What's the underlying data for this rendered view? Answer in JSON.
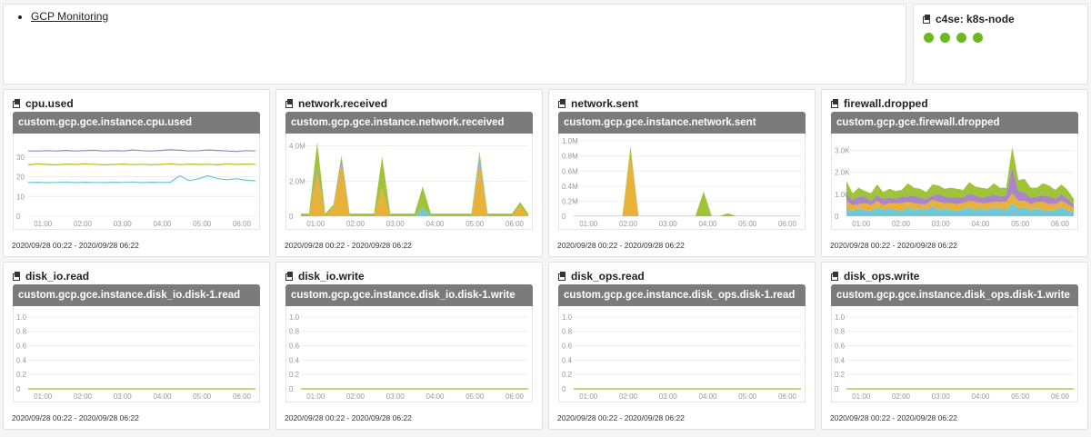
{
  "header": {
    "link_label": "GCP Monitoring"
  },
  "host": {
    "title": "c4se: k8s-node",
    "dots": 4,
    "dot_color": "#6ab920"
  },
  "time_range": "2020/09/28 00:22 - 2020/09/28 06:22",
  "x_ticks": [
    "01:00",
    "02:00",
    "03:00",
    "04:00",
    "05:00",
    "06:00"
  ],
  "graphs": [
    {
      "title": "cpu.used",
      "metric": "custom.gcp.gce.instance.cpu.used",
      "chart_data": {
        "type": "line",
        "x_ticks": [
          "01:00",
          "02:00",
          "03:00",
          "04:00",
          "05:00",
          "06:00"
        ],
        "y_ticks": [
          "0",
          "10",
          "20",
          "30"
        ],
        "ylim": [
          0,
          40
        ],
        "series": [
          {
            "color": "#a57fc1",
            "values": [
              33,
              33,
              33.2,
              33,
              33.3,
              33,
              33.2,
              33.4,
              33,
              33.2,
              33,
              33.5,
              33.2,
              33,
              33.3,
              33.6,
              33.4,
              33,
              33.2,
              33.5,
              33.3,
              33,
              32.8,
              33.2,
              33
            ]
          },
          {
            "color": "#c2b720",
            "values": [
              26,
              26.5,
              26.2,
              26,
              26.4,
              26.2,
              26.5,
              26.3,
              26,
              26.2,
              26.4,
              26.1,
              26.3,
              26,
              26.2,
              26.5,
              26.1,
              26.4,
              26.2,
              26.3,
              26,
              26.5,
              26.2,
              26.4,
              26.3
            ]
          },
          {
            "color": "#6ac5d3",
            "values": [
              17,
              17.2,
              17,
              17.1,
              17.3,
              17,
              17.2,
              17.1,
              17,
              17.2,
              17.1,
              17.3,
              17,
              17.2,
              17.1,
              17.2,
              20.5,
              18,
              19,
              20.5,
              19,
              18.5,
              19,
              18.2,
              18
            ]
          }
        ]
      }
    },
    {
      "title": "network.received",
      "metric": "custom.gcp.gce.instance.network.received",
      "chart_data": {
        "type": "area",
        "x_ticks": [
          "01:00",
          "02:00",
          "03:00",
          "04:00",
          "05:00",
          "06:00"
        ],
        "y_ticks": [
          "0",
          "2.0M",
          "4.0M"
        ],
        "ylim": [
          0,
          4500000
        ],
        "series": [
          {
            "color": "#e7ad2f",
            "values": [
              0,
              0,
              2500000,
              0,
              500000,
              3000000,
              0,
              0,
              0,
              0,
              1600000,
              0,
              0,
              0,
              0,
              0,
              0,
              0,
              0,
              0,
              0,
              0,
              3000000,
              0,
              0,
              0,
              0,
              600000,
              0
            ]
          },
          {
            "color": "#a57fc1",
            "values": [
              0,
              0,
              200000,
              0,
              0,
              300000,
              0,
              0,
              0,
              0,
              0,
              0,
              0,
              0,
              0,
              0,
              0,
              0,
              0,
              0,
              0,
              0,
              200000,
              0,
              0,
              0,
              0,
              0,
              0
            ]
          },
          {
            "color": "#6ac5d3",
            "values": [
              0,
              0,
              0,
              0,
              0,
              0,
              0,
              0,
              0,
              0,
              0,
              0,
              0,
              0,
              0,
              500000,
              0,
              0,
              0,
              0,
              0,
              0,
              300000,
              0,
              0,
              0,
              0,
              0,
              0
            ]
          },
          {
            "color": "#9ac12e",
            "values": [
              150000,
              150000,
              1500000,
              150000,
              150000,
              150000,
              150000,
              150000,
              150000,
              150000,
              1800000,
              150000,
              150000,
              150000,
              150000,
              1200000,
              150000,
              150000,
              150000,
              150000,
              150000,
              150000,
              200000,
              150000,
              150000,
              150000,
              150000,
              200000,
              150000
            ]
          }
        ]
      }
    },
    {
      "title": "network.sent",
      "metric": "custom.gcp.gce.instance.network.sent",
      "chart_data": {
        "type": "area",
        "x_ticks": [
          "01:00",
          "02:00",
          "03:00",
          "04:00",
          "05:00",
          "06:00"
        ],
        "y_ticks": [
          "0",
          "0.2M",
          "0.4M",
          "0.6M",
          "0.8M",
          "1.0M"
        ],
        "ylim": [
          0,
          1050000
        ],
        "series": [
          {
            "color": "#e7ad2f",
            "values": [
              0,
              0,
              0,
              0,
              0,
              0,
              0,
              850000,
              0,
              0,
              0,
              0,
              0,
              0,
              0,
              0,
              0,
              0,
              0,
              0,
              0,
              0,
              0,
              0,
              0,
              0,
              0,
              0,
              0
            ]
          },
          {
            "color": "#9ac12e",
            "values": [
              5000,
              5000,
              5000,
              5000,
              5000,
              5000,
              5000,
              80000,
              5000,
              5000,
              5000,
              5000,
              5000,
              5000,
              5000,
              5000,
              330000,
              5000,
              5000,
              40000,
              5000,
              5000,
              5000,
              5000,
              5000,
              5000,
              5000,
              5000,
              5000
            ]
          }
        ]
      }
    },
    {
      "title": "firewall.dropped",
      "metric": "custom.gcp.gce.firewall.dropped",
      "chart_data": {
        "type": "area",
        "x_ticks": [
          "01:00",
          "02:00",
          "03:00",
          "04:00",
          "05:00",
          "06:00"
        ],
        "y_ticks": [
          "0",
          "1.0K",
          "2.0K",
          "3.0K"
        ],
        "ylim": [
          0,
          3600
        ],
        "series": [
          {
            "color": "#6ac5d3",
            "values": [
              400,
              250,
              350,
              300,
              250,
              400,
              300,
              350,
              300,
              250,
              400,
              300,
              350,
              300,
              450,
              300,
              350,
              300,
              250,
              350,
              400,
              300,
              350,
              300,
              400,
              350,
              300,
              600,
              350,
              400,
              300,
              350,
              300,
              250,
              300,
              400,
              300,
              200
            ]
          },
          {
            "color": "#e7ad2f",
            "values": [
              300,
              250,
              200,
              300,
              250,
              300,
              200,
              250,
              300,
              350,
              250,
              300,
              200,
              250,
              300,
              350,
              250,
              300,
              300,
              250,
              300,
              350,
              250,
              300,
              250,
              300,
              350,
              450,
              350,
              300,
              250,
              300,
              350,
              300,
              250,
              300,
              250,
              200
            ]
          },
          {
            "color": "#a57fc1",
            "values": [
              300,
              250,
              350,
              300,
              200,
              250,
              300,
              250,
              200,
              300,
              250,
              350,
              300,
              250,
              200,
              350,
              300,
              250,
              300,
              250,
              350,
              300,
              250,
              300,
              350,
              250,
              300,
              1200,
              450,
              400,
              300,
              250,
              300,
              350,
              250,
              300,
              250,
              150
            ]
          },
          {
            "color": "#9ac12e",
            "values": [
              600,
              300,
              400,
              250,
              350,
              500,
              300,
              400,
              350,
              300,
              600,
              350,
              400,
              300,
              500,
              400,
              350,
              450,
              400,
              350,
              500,
              400,
              450,
              350,
              500,
              400,
              350,
              900,
              500,
              600,
              450,
              400,
              550,
              500,
              400,
              450,
              400,
              250
            ]
          }
        ]
      }
    },
    {
      "title": "disk_io.read",
      "metric": "custom.gcp.gce.instance.disk_io.disk-1.read",
      "chart_data": {
        "type": "line",
        "x_ticks": [
          "01:00",
          "02:00",
          "03:00",
          "04:00",
          "05:00",
          "06:00"
        ],
        "y_ticks": [
          "0",
          "0.2",
          "0.4",
          "0.6",
          "0.8",
          "1.0"
        ],
        "ylim": [
          0,
          1.1
        ],
        "series": [
          {
            "color": "#9ac12e",
            "values": [
              0,
              0
            ]
          }
        ]
      }
    },
    {
      "title": "disk_io.write",
      "metric": "custom.gcp.gce.instance.disk_io.disk-1.write",
      "chart_data": {
        "type": "line",
        "x_ticks": [
          "01:00",
          "02:00",
          "03:00",
          "04:00",
          "05:00",
          "06:00"
        ],
        "y_ticks": [
          "0",
          "0.2",
          "0.4",
          "0.6",
          "0.8",
          "1.0"
        ],
        "ylim": [
          0,
          1.1
        ],
        "series": [
          {
            "color": "#9ac12e",
            "values": [
              0,
              0
            ]
          }
        ]
      }
    },
    {
      "title": "disk_ops.read",
      "metric": "custom.gcp.gce.instance.disk_ops.disk-1.read",
      "chart_data": {
        "type": "line",
        "x_ticks": [
          "01:00",
          "02:00",
          "03:00",
          "04:00",
          "05:00",
          "06:00"
        ],
        "y_ticks": [
          "0",
          "0.2",
          "0.4",
          "0.6",
          "0.8",
          "1.0"
        ],
        "ylim": [
          0,
          1.1
        ],
        "series": [
          {
            "color": "#9ac12e",
            "values": [
              0,
              0
            ]
          }
        ]
      }
    },
    {
      "title": "disk_ops.write",
      "metric": "custom.gcp.gce.instance.disk_ops.disk-1.write",
      "chart_data": {
        "type": "line",
        "x_ticks": [
          "01:00",
          "02:00",
          "03:00",
          "04:00",
          "05:00",
          "06:00"
        ],
        "y_ticks": [
          "0",
          "0.2",
          "0.4",
          "0.6",
          "0.8",
          "1.0"
        ],
        "ylim": [
          0,
          1.1
        ],
        "series": [
          {
            "color": "#9ac12e",
            "values": [
              0,
              0
            ]
          }
        ]
      }
    }
  ]
}
